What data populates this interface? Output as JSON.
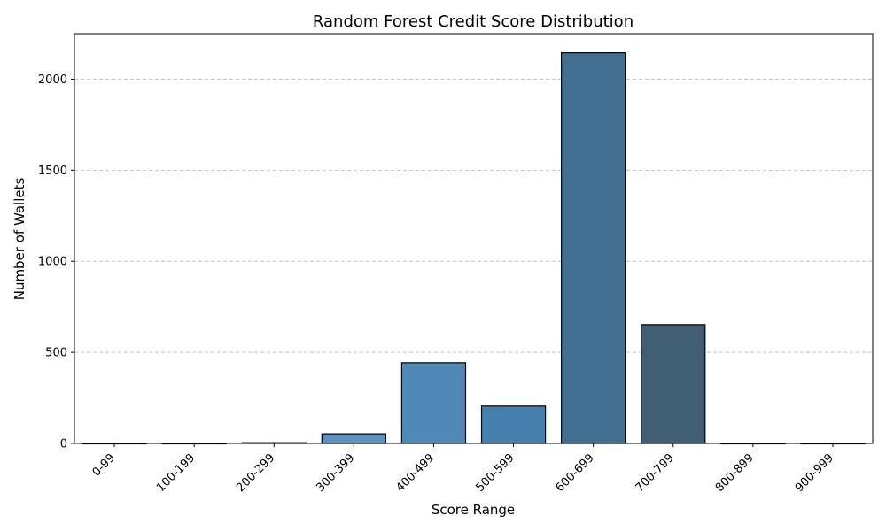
{
  "chart_data": {
    "type": "bar",
    "title": "Random Forest Credit Score Distribution",
    "xlabel": "Score Range",
    "ylabel": "Number of Wallets",
    "categories": [
      "0-99",
      "100-199",
      "200-299",
      "300-399",
      "400-499",
      "500-599",
      "600-699",
      "700-799",
      "800-899",
      "900-999"
    ],
    "values": [
      0,
      0,
      4,
      53,
      443,
      205,
      2145,
      652,
      0,
      0
    ],
    "bar_colors": [
      "#5f92bf",
      "#5f92bf",
      "#5f92bf",
      "#5e92bf",
      "#5189b6",
      "#457fab",
      "#426f91",
      "#3f5e74",
      "#3a4c5c",
      "#39424d"
    ],
    "ylim": [
      0,
      2250
    ],
    "yticks": [
      0,
      500,
      1000,
      1500,
      2000
    ],
    "grid": "y-dashed",
    "legend": "none"
  }
}
